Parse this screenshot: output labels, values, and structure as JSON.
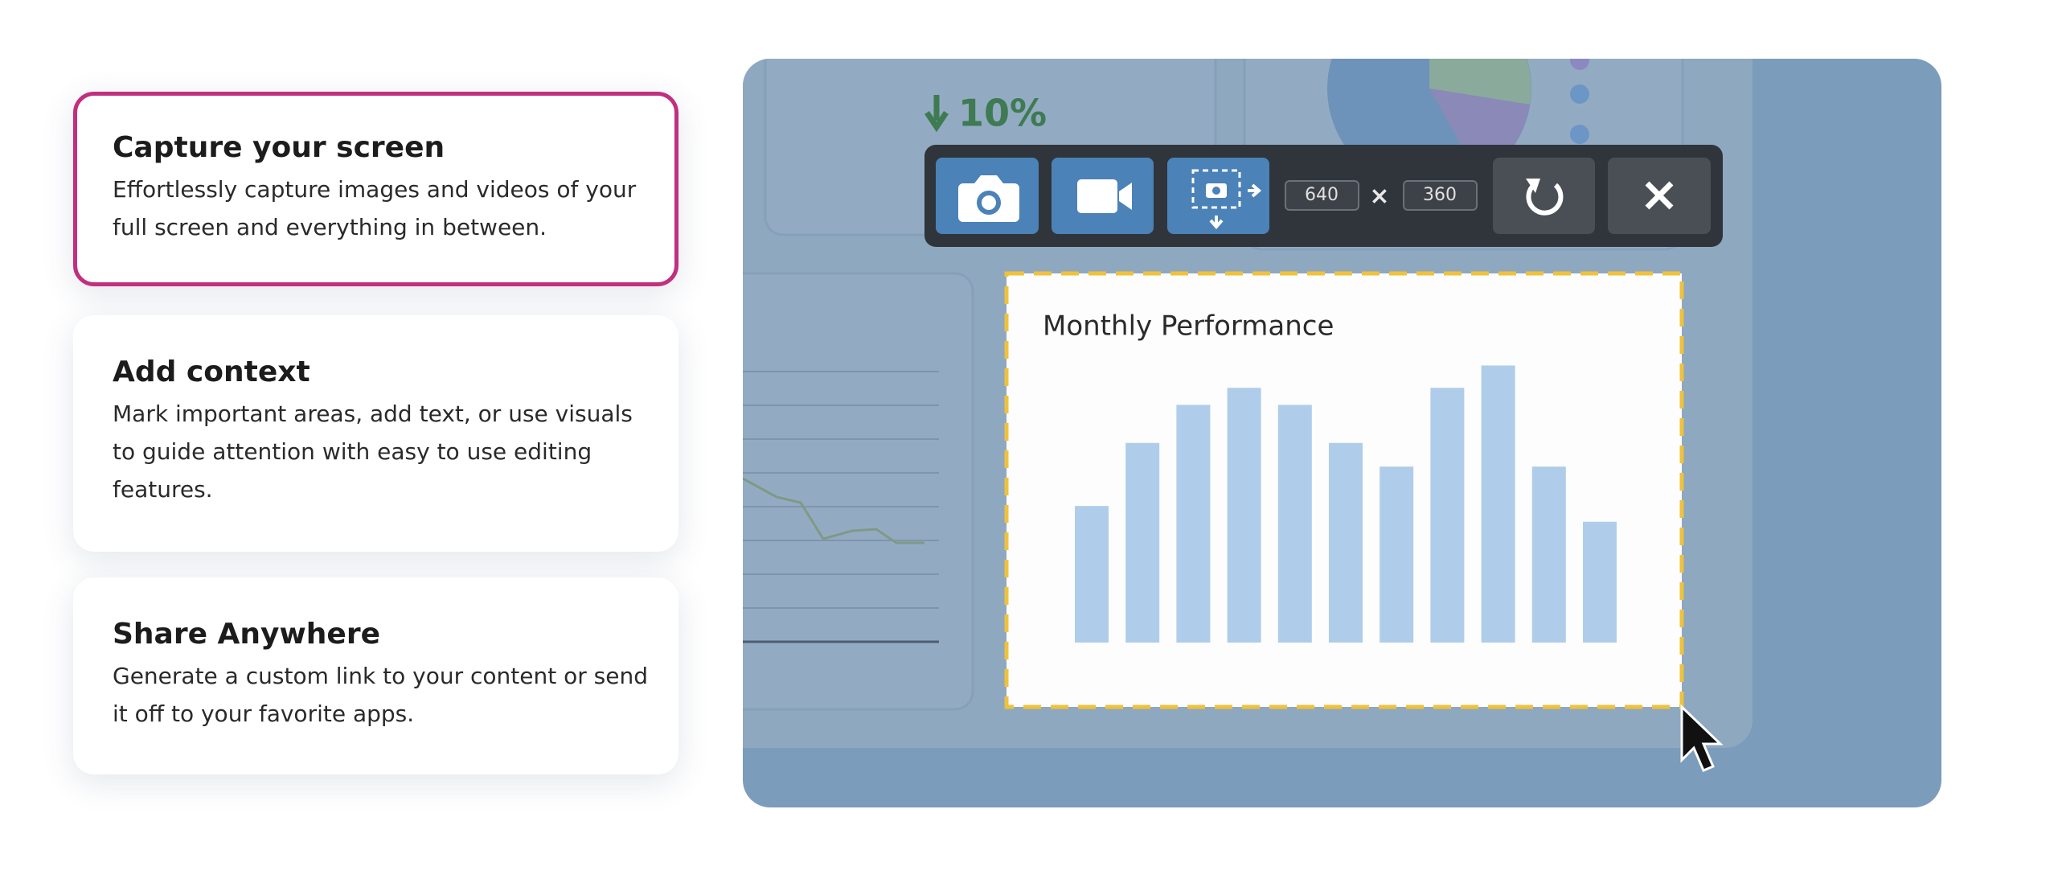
{
  "cards": [
    {
      "title": "Capture your screen",
      "text": "Effortlessly capture images and videos of your full screen and everything in between."
    },
    {
      "title": "Add context",
      "text": "Mark important areas, add text, or use visuals to guide attention with easy to use editing features."
    },
    {
      "title": "Share Anywhere",
      "text": "Generate a custom link to your content or send it off to your favorite apps."
    }
  ],
  "dashboard": {
    "stat": "10%"
  },
  "toolbar": {
    "width": "640",
    "separator": "×",
    "height": "360"
  },
  "preview_chart": {
    "type": "bar",
    "title": "Monthly Performance",
    "values": [
      104,
      152,
      181,
      194,
      181,
      152,
      134,
      194,
      211,
      134,
      92
    ],
    "color": "#afcdea"
  }
}
